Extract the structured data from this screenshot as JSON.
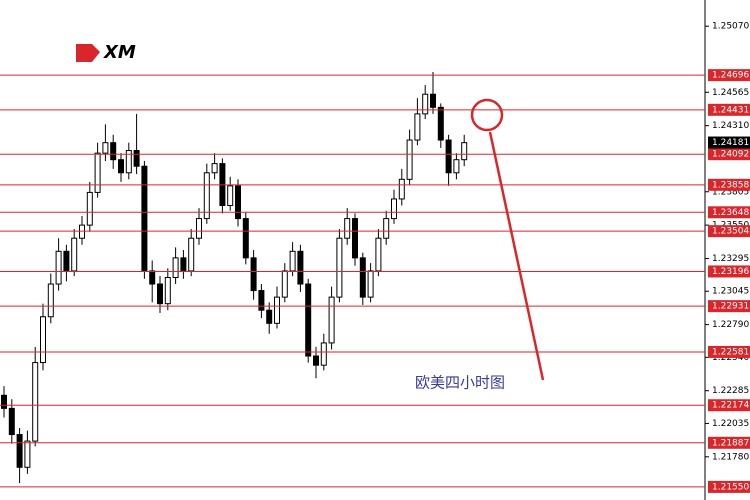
{
  "chart_data": {
    "type": "candlestick",
    "logo": "XM",
    "annotation": "欧美四小时图",
    "ylim": [
      1.2145,
      1.2527
    ],
    "yticks": [
      {
        "value": 1.2507,
        "label": "1.25070"
      },
      1.24565,
      {
        "value": 1.2431,
        "label": "1.24310"
      },
      1.23805,
      {
        "value": 1.2355,
        "label": "1.23550"
      },
      1.23295,
      1.23045,
      {
        "value": 1.2279,
        "label": "1.22790"
      },
      {
        "value": 1.2254,
        "label": "1.22540"
      },
      1.22285,
      1.22035,
      {
        "value": 1.2178,
        "label": "1.21780"
      }
    ],
    "levels": [
      1.24696,
      1.24431,
      1.24092,
      1.23858,
      1.23648,
      1.23504,
      1.23196,
      1.22931,
      1.22581,
      1.22174,
      1.21887,
      {
        "value": 1.2155,
        "label": "1.21550"
      }
    ],
    "level_color": "#d9262b",
    "current_price": 1.24181,
    "categories": [
      null,
      null,
      null,
      null,
      null,
      null,
      null,
      null,
      null,
      null,
      null,
      null,
      null,
      null,
      null,
      null,
      null,
      null,
      null,
      null,
      null,
      null,
      null,
      null,
      null,
      null,
      null,
      null,
      null,
      null,
      null,
      null,
      null,
      null,
      null,
      null,
      null,
      null,
      null,
      null,
      null,
      null,
      null,
      null,
      null,
      null,
      null,
      null,
      null,
      null,
      null,
      null,
      null,
      null,
      null,
      null,
      null,
      null,
      null,
      null
    ],
    "open": [
      1.2225,
      1.2215,
      1.2195,
      1.217,
      1.219,
      1.225,
      1.2285,
      1.231,
      1.2335,
      1.232,
      1.2345,
      1.2355,
      1.238,
      1.241,
      1.2418,
      1.2405,
      1.2395,
      1.2412,
      1.24,
      1.232,
      1.231,
      1.2295,
      1.2315,
      1.233,
      1.232,
      1.2345,
      1.236,
      1.2395,
      1.2402,
      1.237,
      1.2385,
      1.236,
      1.233,
      1.2305,
      1.229,
      1.228,
      1.23,
      1.232,
      1.2335,
      1.231,
      1.2255,
      1.2248,
      1.2265,
      1.23,
      1.2345,
      1.236,
      1.233,
      1.23,
      1.232,
      1.2345,
      1.236,
      1.2375,
      1.239,
      1.242,
      1.244,
      1.2455,
      1.2445,
      1.242,
      1.2395,
      1.2405
    ],
    "high": [
      1.2232,
      1.2222,
      1.22,
      1.2198,
      1.2262,
      1.2295,
      1.2318,
      1.2345,
      1.234,
      1.2352,
      1.2362,
      1.2388,
      1.2418,
      1.2432,
      1.2424,
      1.241,
      1.2418,
      1.244,
      1.2404,
      1.2328,
      1.2316,
      1.2322,
      1.2338,
      1.2336,
      1.2352,
      1.2368,
      1.2402,
      1.241,
      1.2406,
      1.2392,
      1.239,
      1.2365,
      1.2336,
      1.231,
      1.2296,
      1.2308,
      1.2326,
      1.2342,
      1.234,
      1.2314,
      1.2262,
      1.2272,
      1.2308,
      1.2352,
      1.2368,
      1.2364,
      1.2334,
      1.2326,
      1.2352,
      1.2366,
      1.2382,
      1.2398,
      1.2428,
      1.2452,
      1.2462,
      1.2472,
      1.2448,
      1.2424,
      1.241,
      1.2424
    ],
    "low": [
      1.2208,
      1.2188,
      1.2158,
      1.2165,
      1.2186,
      1.2244,
      1.228,
      1.2305,
      1.2312,
      1.2316,
      1.234,
      1.235,
      1.2376,
      1.2404,
      1.2398,
      1.2388,
      1.239,
      1.2394,
      1.2314,
      1.2296,
      1.2288,
      1.229,
      1.231,
      1.2314,
      1.2316,
      1.234,
      1.2356,
      1.239,
      1.2364,
      1.2366,
      1.2354,
      1.2325,
      1.2298,
      1.2284,
      1.2272,
      1.2276,
      1.2296,
      1.2316,
      1.2304,
      1.225,
      1.2238,
      1.2244,
      1.226,
      1.2296,
      1.234,
      1.2324,
      1.2294,
      1.2296,
      1.2316,
      1.234,
      1.2356,
      1.237,
      1.2386,
      1.2416,
      1.2436,
      1.244,
      1.2414,
      1.2385,
      1.239,
      1.24
    ],
    "close": [
      1.2215,
      1.2195,
      1.217,
      1.219,
      1.225,
      1.2285,
      1.231,
      1.2335,
      1.232,
      1.2345,
      1.2355,
      1.238,
      1.241,
      1.2418,
      1.2405,
      1.2395,
      1.2412,
      1.24,
      1.232,
      1.231,
      1.2295,
      1.2315,
      1.233,
      1.232,
      1.2345,
      1.236,
      1.2395,
      1.2402,
      1.237,
      1.2385,
      1.236,
      1.233,
      1.2305,
      1.229,
      1.228,
      1.23,
      1.232,
      1.2335,
      1.231,
      1.2255,
      1.2248,
      1.2265,
      1.23,
      1.2345,
      1.236,
      1.233,
      1.23,
      1.232,
      1.2345,
      1.236,
      1.2375,
      1.239,
      1.242,
      1.244,
      1.2455,
      1.2445,
      1.242,
      1.2395,
      1.2405,
      1.2418
    ]
  }
}
